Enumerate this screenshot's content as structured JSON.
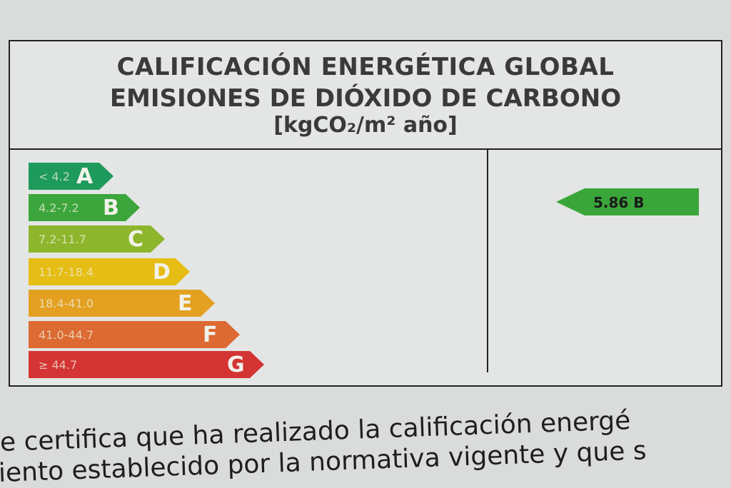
{
  "header": {
    "line1": "CALIFICACIÓN ENERGÉTICA GLOBAL",
    "line2": "EMISIONES DE DIÓXIDO DE CARBONO",
    "line3": "[kgCO₂/m² año]"
  },
  "scale": [
    {
      "letter": "A",
      "range": "< 4.2",
      "color": "#1d9a5c"
    },
    {
      "letter": "B",
      "range": "4.2-7.2",
      "color": "#3ca63c"
    },
    {
      "letter": "C",
      "range": "7.2-11.7",
      "color": "#8db62c"
    },
    {
      "letter": "D",
      "range": "11.7-18.4",
      "color": "#e6bd14"
    },
    {
      "letter": "E",
      "range": "18.4-41.0",
      "color": "#e3a021"
    },
    {
      "letter": "F",
      "range": "41.0-44.7",
      "color": "#dc6a32"
    },
    {
      "letter": "G",
      "range": "≥ 44.7",
      "color": "#d43434"
    }
  ],
  "result": {
    "value": "5.86 B",
    "color": "#3aa63a"
  },
  "paragraph": {
    "line1": "e certifica que ha realizado la calificación energé",
    "line2": "iento establecido por la normativa vigente y que s"
  }
}
